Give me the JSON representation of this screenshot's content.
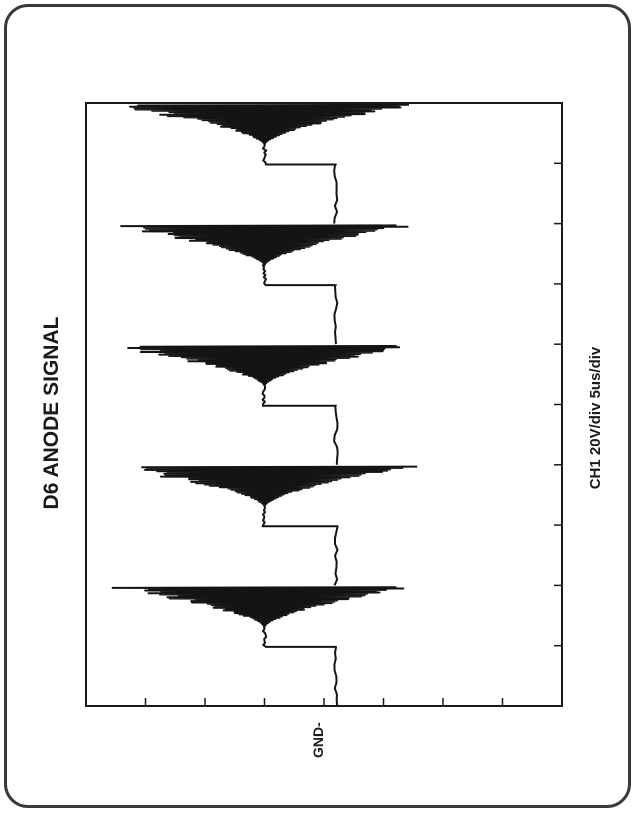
{
  "chart_data": {
    "type": "line",
    "title": "D6 ANODE SIGNAL",
    "settings_label": "CH1  20V/div  5us/div",
    "ground_label": "GND-",
    "axes": {
      "time_divisions": 10,
      "volt_divisions": 8,
      "time_per_div_us": 5,
      "volts_per_div": 20,
      "grid": false
    },
    "signal": {
      "period_us": 10,
      "pulses": 5,
      "levels_div": {
        "flat_high": 4.2,
        "flat_mid": 3.0,
        "peak_max": 5.6,
        "ring_min": 0.2
      },
      "line_color": "#141414"
    }
  }
}
